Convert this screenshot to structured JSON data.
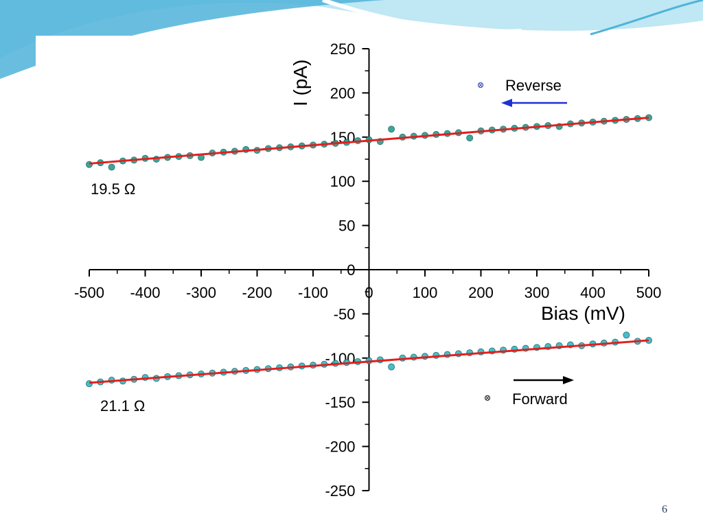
{
  "slide": {
    "page_number": "6",
    "colors": {
      "banner_dark": "#4fb3d9",
      "banner_light": "#bfe7f4",
      "paper": "#ffffff"
    }
  },
  "chart_data": {
    "type": "scatter",
    "xlabel": "Bias (mV)",
    "ylabel": "I (pA)",
    "xlim": [
      -500,
      500
    ],
    "ylim": [
      -250,
      250
    ],
    "x_ticks": [
      -500,
      -400,
      -300,
      -200,
      -100,
      0,
      100,
      200,
      300,
      400,
      500
    ],
    "y_ticks": [
      -250,
      -200,
      -150,
      -100,
      -50,
      0,
      50,
      100,
      150,
      200,
      250
    ],
    "grid": false,
    "legend_position": "top-right",
    "series": [
      {
        "name": "Reverse",
        "marker_color": "#2a9d8f",
        "fit_color": "#e02020",
        "direction_arrow": "left",
        "arrow_color": "#1f2fd6",
        "resistance_label": "19.5 Ω",
        "fit": {
          "x": [
            -500,
            500
          ],
          "y": [
            120,
            172
          ]
        },
        "points": {
          "x": [
            -500,
            -480,
            -460,
            -440,
            -420,
            -400,
            -380,
            -360,
            -340,
            -320,
            -300,
            -280,
            -260,
            -240,
            -220,
            -200,
            -180,
            -160,
            -140,
            -120,
            -100,
            -80,
            -60,
            -40,
            -20,
            0,
            20,
            40,
            60,
            80,
            100,
            120,
            140,
            160,
            180,
            200,
            220,
            240,
            260,
            280,
            300,
            320,
            340,
            360,
            380,
            400,
            420,
            440,
            460,
            480,
            500
          ],
          "y": [
            119,
            121,
            116,
            123,
            124,
            126,
            125,
            127,
            128,
            129,
            127,
            132,
            133,
            134,
            136,
            135,
            137,
            138,
            139,
            140,
            141,
            142,
            143,
            144,
            146,
            147,
            145,
            159,
            150,
            151,
            152,
            153,
            154,
            155,
            149,
            157,
            158,
            159,
            160,
            161,
            162,
            163,
            162,
            165,
            166,
            167,
            168,
            169,
            170,
            171,
            172
          ]
        }
      },
      {
        "name": "Forward",
        "marker_color": "#35b7c7",
        "fit_color": "#e02020",
        "direction_arrow": "right",
        "arrow_color": "#000000",
        "resistance_label": "21.1 Ω",
        "fit": {
          "x": [
            -500,
            500
          ],
          "y": [
            -128,
            -80
          ]
        },
        "points": {
          "x": [
            -500,
            -480,
            -460,
            -440,
            -420,
            -400,
            -380,
            -360,
            -340,
            -320,
            -300,
            -280,
            -260,
            -240,
            -220,
            -200,
            -180,
            -160,
            -140,
            -120,
            -100,
            -80,
            -60,
            -40,
            -20,
            0,
            20,
            40,
            60,
            80,
            100,
            120,
            140,
            160,
            180,
            200,
            220,
            240,
            260,
            280,
            300,
            320,
            340,
            360,
            380,
            400,
            420,
            440,
            460,
            480,
            500
          ],
          "y": [
            -129,
            -127,
            -125,
            -126,
            -124,
            -122,
            -123,
            -121,
            -120,
            -119,
            -118,
            -117,
            -116,
            -115,
            -114,
            -113,
            -112,
            -111,
            -110,
            -109,
            -108,
            -107,
            -106,
            -105,
            -104,
            -103,
            -102,
            -110,
            -100,
            -99,
            -98,
            -97,
            -96,
            -95,
            -94,
            -93,
            -92,
            -91,
            -90,
            -89,
            -88,
            -87,
            -86,
            -85,
            -86,
            -84,
            -83,
            -82,
            -74,
            -81,
            -80
          ]
        }
      }
    ]
  }
}
